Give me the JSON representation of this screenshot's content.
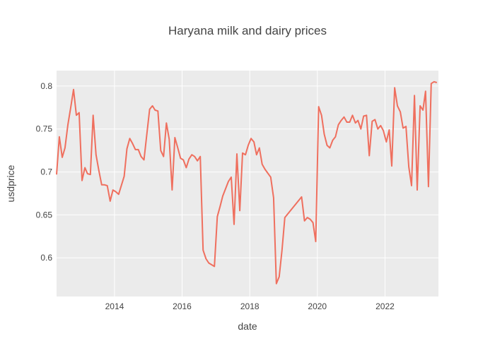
{
  "chart_data": {
    "type": "line",
    "title": "Haryana milk and dairy prices",
    "xlabel": "date",
    "ylabel": "usdprice",
    "xlim": [
      "2012-04-15",
      "2023-08-01"
    ],
    "ylim": [
      0.555,
      0.818
    ],
    "x_ticks": [
      {
        "date": "2014-01-01",
        "label": "2014"
      },
      {
        "date": "2016-01-01",
        "label": "2016"
      },
      {
        "date": "2018-01-01",
        "label": "2018"
      },
      {
        "date": "2020-01-01",
        "label": "2020"
      },
      {
        "date": "2022-01-01",
        "label": "2022"
      }
    ],
    "y_ticks": [
      {
        "value": 0.6,
        "label": "0.6"
      },
      {
        "value": 0.65,
        "label": "0.65"
      },
      {
        "value": 0.7,
        "label": "0.7"
      },
      {
        "value": 0.75,
        "label": "0.75"
      },
      {
        "value": 0.8,
        "label": "0.8"
      }
    ],
    "grid": true,
    "colors": {
      "line": "#EF6F5E",
      "plot_background": "#EBEBEB",
      "grid": "#FFFFFF"
    },
    "series": [
      {
        "x": [
          "2012-04-15",
          "2012-05-15",
          "2012-06-15",
          "2012-07-15",
          "2012-08-15",
          "2012-09-15",
          "2012-10-15",
          "2012-11-15",
          "2012-12-15",
          "2013-01-15",
          "2013-02-15",
          "2013-03-15",
          "2013-04-15",
          "2013-05-15",
          "2013-06-15",
          "2013-07-15",
          "2013-08-15",
          "2013-09-15",
          "2013-10-15",
          "2013-11-15",
          "2013-12-15",
          "2014-01-15",
          "2014-02-15",
          "2014-04-15",
          "2014-05-15",
          "2014-06-15",
          "2014-07-15",
          "2014-08-15",
          "2014-09-15",
          "2014-10-15",
          "2014-11-15",
          "2014-12-15",
          "2015-01-15",
          "2015-02-15",
          "2015-03-15",
          "2015-04-15",
          "2015-05-15",
          "2015-06-15",
          "2015-07-15",
          "2015-08-15",
          "2015-09-15",
          "2015-10-15",
          "2015-11-15",
          "2015-12-15",
          "2016-01-15",
          "2016-02-15",
          "2016-03-15",
          "2016-04-15",
          "2016-05-15",
          "2016-06-15",
          "2016-07-15",
          "2016-08-15",
          "2016-09-15",
          "2016-10-15",
          "2016-12-15",
          "2017-01-15",
          "2017-02-15",
          "2017-03-15",
          "2017-05-15",
          "2017-06-15",
          "2017-07-15",
          "2017-08-15",
          "2017-09-15",
          "2017-10-15",
          "2017-11-15",
          "2017-12-15",
          "2018-01-15",
          "2018-02-15",
          "2018-03-15",
          "2018-04-15",
          "2018-05-15",
          "2018-06-15",
          "2018-08-15",
          "2018-09-15",
          "2018-10-15",
          "2018-11-15",
          "2018-12-15",
          "2019-01-15",
          "2019-07-15",
          "2019-08-15",
          "2019-09-15",
          "2019-10-15",
          "2019-11-15",
          "2019-12-15",
          "2020-01-15",
          "2020-02-15",
          "2020-03-15",
          "2020-04-15",
          "2020-05-15",
          "2020-06-15",
          "2020-07-15",
          "2020-08-15",
          "2020-09-15",
          "2020-10-15",
          "2020-11-15",
          "2020-12-15",
          "2021-01-15",
          "2021-02-15",
          "2021-03-15",
          "2021-04-15",
          "2021-05-15",
          "2021-06-15",
          "2021-07-15",
          "2021-08-15",
          "2021-09-15",
          "2021-10-15",
          "2021-11-15",
          "2021-12-15",
          "2022-01-15",
          "2022-02-15",
          "2022-03-15",
          "2022-04-15",
          "2022-05-15",
          "2022-06-15",
          "2022-07-15",
          "2022-08-15",
          "2022-09-15",
          "2022-10-15",
          "2022-11-15",
          "2022-12-15",
          "2023-01-15",
          "2023-02-15",
          "2023-03-15",
          "2023-04-15",
          "2023-05-15",
          "2023-06-15",
          "2023-07-15"
        ],
        "y": [
          0.697,
          0.741,
          0.717,
          0.728,
          0.755,
          0.775,
          0.796,
          0.766,
          0.769,
          0.69,
          0.705,
          0.698,
          0.697,
          0.766,
          0.72,
          0.702,
          0.685,
          0.685,
          0.684,
          0.666,
          0.679,
          0.677,
          0.674,
          0.695,
          0.727,
          0.739,
          0.733,
          0.726,
          0.726,
          0.718,
          0.714,
          0.743,
          0.773,
          0.777,
          0.772,
          0.771,
          0.725,
          0.718,
          0.757,
          0.738,
          0.679,
          0.74,
          0.728,
          0.716,
          0.714,
          0.705,
          0.715,
          0.72,
          0.718,
          0.713,
          0.718,
          0.609,
          0.599,
          0.594,
          0.59,
          0.648,
          0.66,
          0.672,
          0.689,
          0.694,
          0.639,
          0.721,
          0.655,
          0.722,
          0.72,
          0.731,
          0.739,
          0.735,
          0.72,
          0.728,
          0.709,
          0.703,
          0.694,
          0.67,
          0.57,
          0.578,
          0.609,
          0.647,
          0.671,
          0.643,
          0.647,
          0.645,
          0.641,
          0.619,
          0.776,
          0.766,
          0.744,
          0.731,
          0.728,
          0.737,
          0.741,
          0.755,
          0.76,
          0.764,
          0.758,
          0.758,
          0.766,
          0.757,
          0.76,
          0.75,
          0.765,
          0.766,
          0.719,
          0.759,
          0.761,
          0.75,
          0.754,
          0.748,
          0.735,
          0.749,
          0.707,
          0.798,
          0.777,
          0.77,
          0.751,
          0.753,
          0.706,
          0.684,
          0.789,
          0.679,
          0.777,
          0.772,
          0.794,
          0.683,
          0.803,
          0.805,
          0.804
        ]
      }
    ]
  }
}
